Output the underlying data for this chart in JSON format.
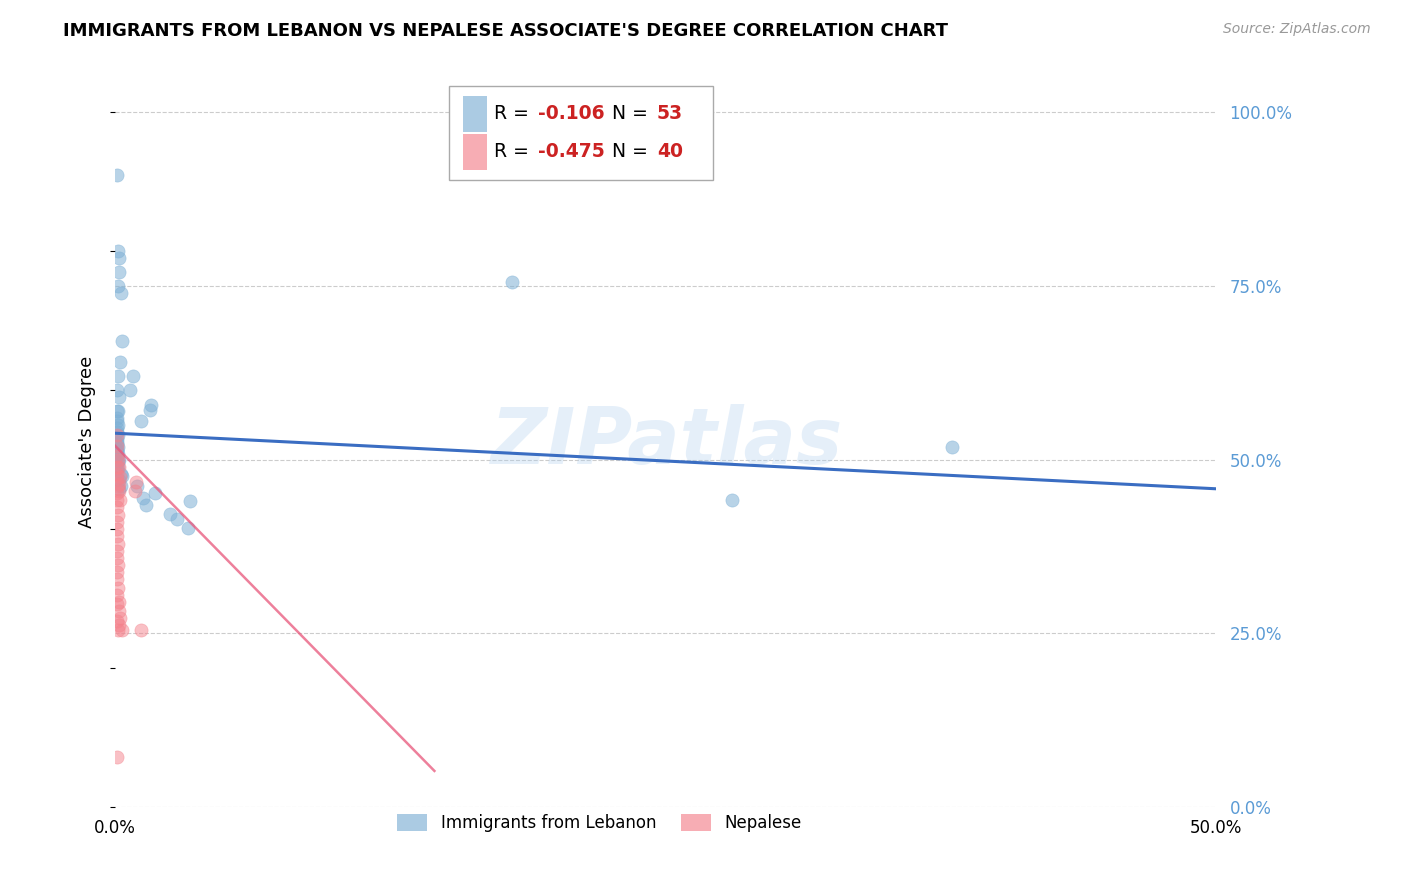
{
  "title": "IMMIGRANTS FROM LEBANON VS NEPALESE ASSOCIATE'S DEGREE CORRELATION CHART",
  "source": "Source: ZipAtlas.com",
  "ylabel": "Associate's Degree",
  "watermark": "ZIPatlas",
  "legend_r1_val": "-0.106",
  "legend_n1_val": "53",
  "legend_r2_val": "-0.475",
  "legend_n2_val": "40",
  "blue_color": "#7EB0D5",
  "pink_color": "#F4828C",
  "trendline_blue_color": "#3A6DC2",
  "trendline_pink_color": "#E8557A",
  "right_label_color": "#5B9BD5",
  "xmin": 0.0,
  "xmax": 0.5,
  "ymin": 0.0,
  "ymax": 1.05,
  "blue_scatter": [
    [
      0.0008,
      0.91
    ],
    [
      0.0015,
      0.8
    ],
    [
      0.002,
      0.79
    ],
    [
      0.0018,
      0.77
    ],
    [
      0.0012,
      0.75
    ],
    [
      0.0025,
      0.74
    ],
    [
      0.003,
      0.67
    ],
    [
      0.0022,
      0.64
    ],
    [
      0.0015,
      0.62
    ],
    [
      0.001,
      0.6
    ],
    [
      0.0018,
      0.59
    ],
    [
      0.0008,
      0.57
    ],
    [
      0.0012,
      0.57
    ],
    [
      0.001,
      0.56
    ],
    [
      0.0008,
      0.555
    ],
    [
      0.0012,
      0.55
    ],
    [
      0.0008,
      0.545
    ],
    [
      0.001,
      0.54
    ],
    [
      0.0015,
      0.535
    ],
    [
      0.0008,
      0.53
    ],
    [
      0.001,
      0.525
    ],
    [
      0.0008,
      0.522
    ],
    [
      0.0012,
      0.518
    ],
    [
      0.001,
      0.515
    ],
    [
      0.0008,
      0.512
    ],
    [
      0.0015,
      0.508
    ],
    [
      0.001,
      0.505
    ],
    [
      0.002,
      0.5
    ],
    [
      0.0015,
      0.498
    ],
    [
      0.0008,
      0.495
    ],
    [
      0.0012,
      0.49
    ],
    [
      0.001,
      0.486
    ],
    [
      0.0025,
      0.48
    ],
    [
      0.003,
      0.476
    ],
    [
      0.002,
      0.47
    ],
    [
      0.0028,
      0.462
    ],
    [
      0.0018,
      0.458
    ],
    [
      0.007,
      0.6
    ],
    [
      0.008,
      0.62
    ],
    [
      0.012,
      0.555
    ],
    [
      0.01,
      0.462
    ],
    [
      0.0125,
      0.445
    ],
    [
      0.014,
      0.435
    ],
    [
      0.016,
      0.572
    ],
    [
      0.0162,
      0.578
    ],
    [
      0.018,
      0.452
    ],
    [
      0.025,
      0.422
    ],
    [
      0.028,
      0.415
    ],
    [
      0.033,
      0.402
    ],
    [
      0.034,
      0.44
    ],
    [
      0.18,
      0.755
    ],
    [
      0.38,
      0.518
    ],
    [
      0.28,
      0.442
    ]
  ],
  "pink_scatter": [
    [
      0.0008,
      0.535
    ],
    [
      0.001,
      0.52
    ],
    [
      0.0008,
      0.505
    ],
    [
      0.0012,
      0.5
    ],
    [
      0.0008,
      0.49
    ],
    [
      0.001,
      0.48
    ],
    [
      0.0008,
      0.472
    ],
    [
      0.0012,
      0.462
    ],
    [
      0.001,
      0.452
    ],
    [
      0.0008,
      0.442
    ],
    [
      0.001,
      0.432
    ],
    [
      0.0012,
      0.42
    ],
    [
      0.0008,
      0.41
    ],
    [
      0.001,
      0.4
    ],
    [
      0.0008,
      0.39
    ],
    [
      0.0012,
      0.378
    ],
    [
      0.0008,
      0.368
    ],
    [
      0.001,
      0.358
    ],
    [
      0.0012,
      0.348
    ],
    [
      0.0008,
      0.338
    ],
    [
      0.001,
      0.328
    ],
    [
      0.0012,
      0.315
    ],
    [
      0.0008,
      0.305
    ],
    [
      0.001,
      0.292
    ],
    [
      0.002,
      0.49
    ],
    [
      0.0022,
      0.475
    ],
    [
      0.0018,
      0.465
    ],
    [
      0.002,
      0.455
    ],
    [
      0.0022,
      0.442
    ],
    [
      0.002,
      0.295
    ],
    [
      0.0018,
      0.282
    ],
    [
      0.0022,
      0.272
    ],
    [
      0.002,
      0.262
    ],
    [
      0.003,
      0.255
    ],
    [
      0.0092,
      0.455
    ],
    [
      0.0095,
      0.468
    ],
    [
      0.012,
      0.255
    ],
    [
      0.0008,
      0.072
    ],
    [
      0.0012,
      0.255
    ],
    [
      0.001,
      0.268
    ]
  ],
  "blue_trend_x": [
    0.0,
    0.5
  ],
  "blue_trend_y": [
    0.538,
    0.458
  ],
  "pink_trend_x": [
    0.0,
    0.145
  ],
  "pink_trend_y": [
    0.52,
    0.052
  ]
}
